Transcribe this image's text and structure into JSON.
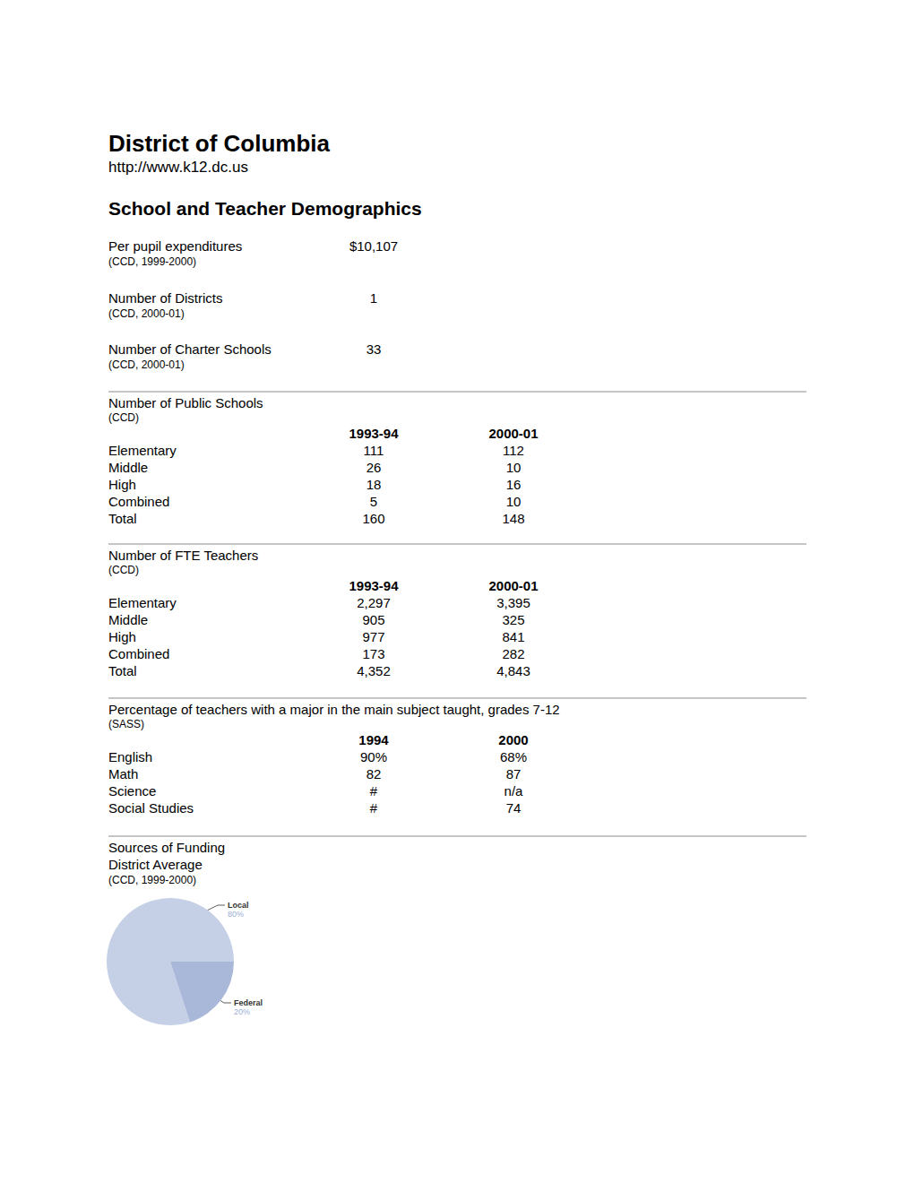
{
  "header": {
    "title": "District of Columbia",
    "url": "http://www.k12.dc.us"
  },
  "section_title": "School and Teacher Demographics",
  "stats": [
    {
      "label": "Per pupil expenditures",
      "value": "$10,107",
      "source": "(CCD, 1999-2000)"
    },
    {
      "label": "Number of Districts",
      "value": "1",
      "source": "(CCD, 2000-01)"
    },
    {
      "label": "Number of Charter Schools",
      "value": "33",
      "source": "(CCD, 2000-01)"
    }
  ],
  "tables": [
    {
      "title": "Number of Public Schools",
      "source": "(CCD)",
      "columns": [
        "1993-94",
        "2000-01"
      ],
      "rows": [
        [
          "Elementary",
          "111",
          "112"
        ],
        [
          "Middle",
          "26",
          "10"
        ],
        [
          "High",
          "18",
          "16"
        ],
        [
          "Combined",
          "5",
          "10"
        ],
        [
          "Total",
          "160",
          "148"
        ]
      ]
    },
    {
      "title": "Number of FTE Teachers",
      "source": "(CCD)",
      "columns": [
        "1993-94",
        "2000-01"
      ],
      "rows": [
        [
          "Elementary",
          "2,297",
          "3,395"
        ],
        [
          "Middle",
          "905",
          "325"
        ],
        [
          "High",
          "977",
          "841"
        ],
        [
          "Combined",
          "173",
          "282"
        ],
        [
          "Total",
          "4,352",
          "4,843"
        ]
      ]
    },
    {
      "title": "Percentage of teachers with a major in the main subject taught, grades 7-12",
      "source": "(SASS)",
      "columns": [
        "1994",
        "2000"
      ],
      "rows": [
        [
          "English",
          "90%",
          "68%"
        ],
        [
          "Math",
          "82",
          "87"
        ],
        [
          "Science",
          "#",
          "n/a"
        ],
        [
          "Social Studies",
          "#",
          "74"
        ]
      ]
    }
  ],
  "chart_data": {
    "type": "pie",
    "title": "Sources of Funding",
    "subtitle": "District Average",
    "annotations": [
      "(CCD, 1999-2000)"
    ],
    "categories": [
      "Local",
      "Federal"
    ],
    "values": [
      80,
      20
    ],
    "value_labels": [
      "80%",
      "20%"
    ],
    "colors": [
      "#c5d0e6",
      "#a9b8d8"
    ],
    "data_labels": true
  }
}
